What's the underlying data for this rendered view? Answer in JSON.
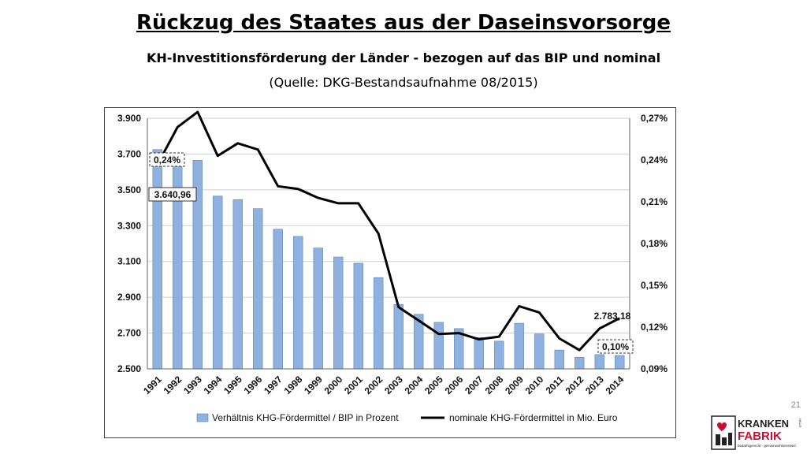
{
  "header": {
    "title": "Rückzug des Staates aus der Daseinsvorsorge",
    "subtitle": "KH-Investitionsförderung der Länder - bezogen auf das BIP und nominal",
    "source": "(Quelle: DKG-Bestandsaufnahme 08/2015)"
  },
  "page_number": "21",
  "logo": {
    "line1": "KRANKEN",
    "line2": "FABRIK",
    "tagline": "bedarfsgerecht · gemeinwohlorientiert",
    "side_text": "HAUS"
  },
  "colors": {
    "bar": "#8eb1e0",
    "bar_stroke": "#5b82b8",
    "line": "#000000",
    "logo_red": "#c8102e",
    "logo_dark": "#222222"
  },
  "chart_data": {
    "type": "bar+line",
    "categories": [
      "1991",
      "1992",
      "1993",
      "1994",
      "1995",
      "1996",
      "1997",
      "1998",
      "1999",
      "2000",
      "2001",
      "2002",
      "2003",
      "2004",
      "2005",
      "2006",
      "2007",
      "2008",
      "2009",
      "2010",
      "2011",
      "2012",
      "2013",
      "2014"
    ],
    "y_left": {
      "min": 2500,
      "max": 3900,
      "ticks": [
        2500,
        2700,
        2900,
        3100,
        3300,
        3500,
        3700,
        3900
      ],
      "tick_labels": [
        "2.500",
        "2.700",
        "2.900",
        "3.100",
        "3.300",
        "3.500",
        "3.700",
        "3.900"
      ]
    },
    "y_right": {
      "min": 0.09,
      "max": 0.27,
      "ticks": [
        0.09,
        0.12,
        0.15,
        0.18,
        0.21,
        0.24,
        0.27
      ],
      "tick_labels": [
        "0,09%",
        "0,12%",
        "0,15%",
        "0,18%",
        "0,21%",
        "0,24%",
        "0,27%"
      ]
    },
    "grid": true,
    "series": [
      {
        "name": "Verhältnis KHG-Fördermittel / BIP in Prozent",
        "kind": "bar",
        "axis": "left",
        "values": [
          3725,
          3685,
          3665,
          3465,
          3445,
          3395,
          3280,
          3240,
          3175,
          3125,
          3090,
          3010,
          2860,
          2805,
          2760,
          2725,
          2675,
          2655,
          2755,
          2695,
          2605,
          2565,
          2580,
          2575
        ]
      },
      {
        "name": "nominale KHG-Fördermittel in Mio. Euro",
        "kind": "line",
        "axis": "left",
        "values": [
          3640.96,
          3850,
          3935,
          3690,
          3760,
          3725,
          3520,
          3505,
          3455,
          3425,
          3425,
          3255,
          2845,
          2770,
          2695,
          2700,
          2665,
          2680,
          2850,
          2815,
          2670,
          2605,
          2725,
          2783.18
        ]
      }
    ],
    "annotations": [
      {
        "text": "0,24%",
        "boxed": true,
        "dashed": true,
        "at": "1991"
      },
      {
        "text": "3.640,96",
        "boxed": true,
        "dashed": false,
        "at": "1991"
      },
      {
        "text": "2.783,18",
        "boxed": false,
        "dashed": false,
        "at": "2014"
      },
      {
        "text": "0,10%",
        "boxed": true,
        "dashed": true,
        "at": "2014"
      }
    ],
    "legend_position": "bottom"
  }
}
